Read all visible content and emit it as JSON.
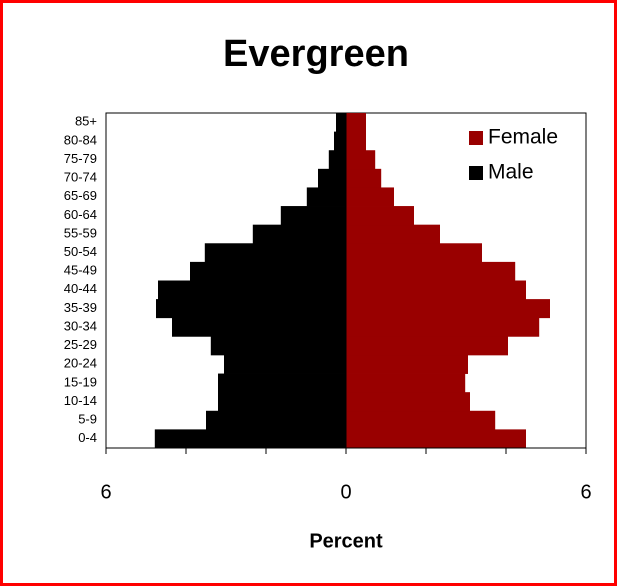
{
  "chart_data": {
    "type": "pyramid",
    "title": "Evergreen",
    "x_label": "Percent",
    "categories": [
      "0-4",
      "5-9",
      "10-14",
      "15-19",
      "20-24",
      "25-29",
      "30-34",
      "35-39",
      "40-44",
      "45-49",
      "50-54",
      "55-59",
      "60-64",
      "65-69",
      "70-74",
      "75-79",
      "80-84",
      "85+"
    ],
    "series": [
      {
        "name": "Female",
        "color": "#990000",
        "values": [
          4.5,
          3.73,
          3.1,
          2.98,
          3.05,
          4.05,
          4.83,
          5.1,
          4.5,
          4.23,
          3.4,
          2.35,
          1.7,
          1.2,
          0.88,
          0.73,
          0.5,
          0.5
        ]
      },
      {
        "name": "Male",
        "color": "#000000",
        "values": [
          -4.78,
          -3.5,
          -3.2,
          -3.2,
          -3.05,
          -3.38,
          -4.35,
          -4.75,
          -4.7,
          -3.9,
          -3.53,
          -2.33,
          -1.63,
          -0.98,
          -0.7,
          -0.43,
          -0.3,
          -0.25
        ]
      }
    ],
    "xlim": [
      -6,
      6
    ],
    "xticks": [
      {
        "value": -6,
        "label": "6"
      },
      0,
      6
    ],
    "minor_xticks": [
      -4,
      -2,
      2,
      4
    ],
    "legend": "upper right"
  }
}
